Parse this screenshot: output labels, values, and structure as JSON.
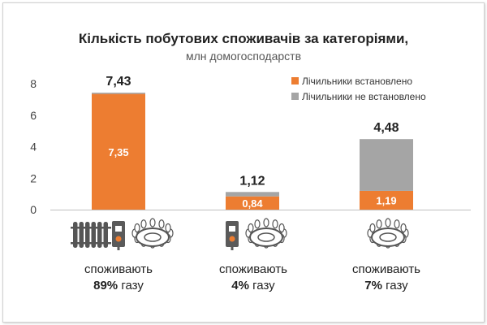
{
  "chart_data": {
    "type": "bar",
    "title": "Кількість побутових споживачів за категоріями,",
    "subtitle": "млн домогосподарств",
    "ylim": [
      0,
      8
    ],
    "yticks": [
      0,
      2,
      4,
      6,
      8
    ],
    "stacked": true,
    "legend_position": "top-right",
    "categories": [
      "споживають 89% газу",
      "споживають 4% газу",
      "споживають 7% газу"
    ],
    "series": [
      {
        "name": "Лічильники встановлено",
        "color": "#ed7d31",
        "values": [
          7.35,
          0.84,
          1.19
        ]
      },
      {
        "name": "Лічильники не встановлено",
        "color": "#a5a5a5",
        "values": [
          0.08,
          0.28,
          3.29
        ]
      }
    ],
    "totals": [
      7.43,
      1.12,
      4.48
    ],
    "total_labels": [
      "7,43",
      "1,12",
      "4,48"
    ],
    "inner_labels": [
      "7,35",
      "0,84",
      "1,19"
    ],
    "grid": false
  },
  "bottom": [
    {
      "line1": "споживають",
      "pct": "89%",
      "unit": " газу",
      "icons": [
        "radiator-icon",
        "boiler-icon",
        "gas-burner-icon"
      ]
    },
    {
      "line1": "споживають",
      "pct": "4%",
      "unit": " газу",
      "icons": [
        "boiler-icon",
        "gas-burner-icon"
      ]
    },
    {
      "line1": "споживають",
      "pct": "7%",
      "unit": " газу",
      "icons": [
        "gas-burner-icon"
      ]
    }
  ]
}
